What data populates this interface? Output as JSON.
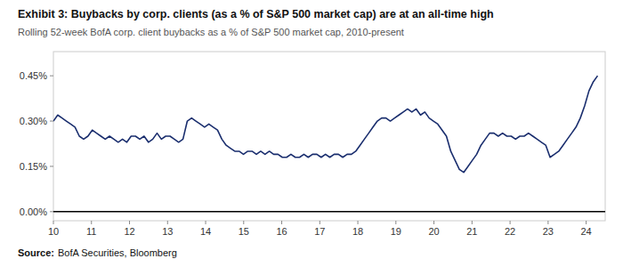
{
  "chart_data": {
    "type": "line",
    "title": "Exhibit 3: Buybacks by corp. clients (as a % of S&P 500 market cap) are at an all-time high",
    "subtitle": "Rolling 52-week BofA corp. client buybacks as a % of S&P 500 market cap, 2010-present",
    "source": {
      "label": "Source:",
      "text": "BofA Securities, Bloomberg"
    },
    "x": [
      10,
      10.1135,
      10.227,
      10.3405,
      10.454,
      10.5675,
      10.681,
      10.7944,
      10.9079,
      11.0214,
      11.1349,
      11.2484,
      11.3619,
      11.4754,
      11.5889,
      11.7024,
      11.8159,
      11.9294,
      12.0429,
      12.1563,
      12.2698,
      12.3833,
      12.4968,
      12.6103,
      12.7238,
      12.8373,
      12.9508,
      13.0643,
      13.1778,
      13.2913,
      13.4048,
      13.5183,
      13.6317,
      13.7452,
      13.8587,
      13.9722,
      14.0857,
      14.1992,
      14.3127,
      14.4262,
      14.5397,
      14.6532,
      14.7667,
      14.8802,
      14.9937,
      15.1071,
      15.2206,
      15.3341,
      15.4476,
      15.5611,
      15.6746,
      15.7881,
      15.9016,
      16.0151,
      16.1286,
      16.2421,
      16.3556,
      16.469,
      16.5825,
      16.696,
      16.8095,
      16.923,
      17.0365,
      17.15,
      17.2635,
      17.377,
      17.4905,
      17.604,
      17.7175,
      17.831,
      17.9444,
      18.0579,
      18.1714,
      18.2849,
      18.3984,
      18.5119,
      18.6254,
      18.7389,
      18.8524,
      18.9659,
      19.0794,
      19.1929,
      19.3063,
      19.4198,
      19.5333,
      19.6468,
      19.7603,
      19.8738,
      19.9873,
      20.1008,
      20.2143,
      20.3278,
      20.4413,
      20.5548,
      20.6683,
      20.7817,
      20.8952,
      21.0087,
      21.1222,
      21.2357,
      21.3492,
      21.4627,
      21.5762,
      21.6897,
      21.8032,
      21.9167,
      22.0302,
      22.1437,
      22.2571,
      22.3706,
      22.4841,
      22.5976,
      22.7111,
      22.8246,
      22.9381,
      23.0516,
      23.1651,
      23.2786,
      23.3921,
      23.5056,
      23.619,
      23.7325,
      23.846,
      23.9595,
      24.073,
      24.1865,
      24.3
    ],
    "series": [
      {
        "color": "#1a2e6e",
        "values": [
          0.003,
          0.0032,
          0.0031,
          0.003,
          0.0029,
          0.0028,
          0.0025,
          0.0024,
          0.0025,
          0.0027,
          0.0026,
          0.0025,
          0.0024,
          0.0025,
          0.0024,
          0.0023,
          0.0024,
          0.0023,
          0.0025,
          0.0025,
          0.0024,
          0.0025,
          0.0023,
          0.0024,
          0.0026,
          0.0024,
          0.0025,
          0.0025,
          0.0024,
          0.0023,
          0.0024,
          0.003,
          0.0031,
          0.003,
          0.0029,
          0.0028,
          0.0029,
          0.0028,
          0.0027,
          0.0024,
          0.0022,
          0.0021,
          0.002,
          0.002,
          0.0019,
          0.002,
          0.002,
          0.0019,
          0.002,
          0.0019,
          0.002,
          0.0019,
          0.0019,
          0.0018,
          0.0018,
          0.0019,
          0.0018,
          0.0018,
          0.0019,
          0.0018,
          0.0019,
          0.0019,
          0.0018,
          0.0019,
          0.0018,
          0.0019,
          0.0019,
          0.0018,
          0.0019,
          0.0019,
          0.002,
          0.0022,
          0.0024,
          0.0026,
          0.0028,
          0.003,
          0.0031,
          0.0031,
          0.003,
          0.0031,
          0.0032,
          0.0033,
          0.0034,
          0.0033,
          0.0034,
          0.0032,
          0.0033,
          0.0031,
          0.003,
          0.0029,
          0.0027,
          0.0025,
          0.002,
          0.0017,
          0.0014,
          0.0013,
          0.0015,
          0.0017,
          0.0019,
          0.0022,
          0.0024,
          0.0026,
          0.0026,
          0.0025,
          0.0026,
          0.0025,
          0.0025,
          0.0024,
          0.0025,
          0.0025,
          0.0026,
          0.0025,
          0.0024,
          0.0023,
          0.0022,
          0.0018,
          0.0019,
          0.002,
          0.0022,
          0.0024,
          0.0026,
          0.0028,
          0.0031,
          0.0035,
          0.004,
          0.0043,
          0.0045
        ]
      }
    ],
    "xlim": [
      10,
      24.5
    ],
    "xticks": [
      10,
      11,
      12,
      13,
      14,
      15,
      16,
      17,
      18,
      19,
      20,
      21,
      22,
      23,
      24
    ],
    "ylim": [
      -0.0003,
      0.0053
    ],
    "yticks": [
      {
        "value": 0.0,
        "label": "0.00%"
      },
      {
        "value": 0.0015,
        "label": "0.15%"
      },
      {
        "value": 0.003,
        "label": "0.30%"
      },
      {
        "value": 0.0045,
        "label": "0.45%"
      }
    ],
    "grid": false
  }
}
